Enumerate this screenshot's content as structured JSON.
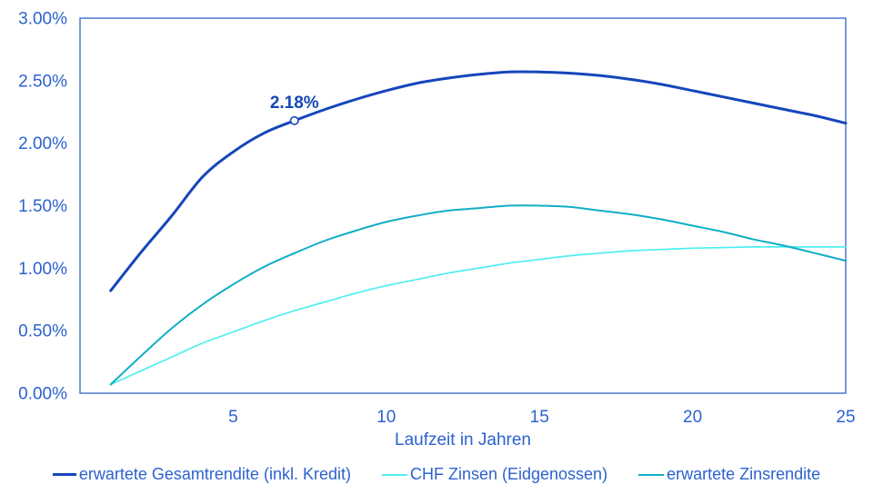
{
  "chart_data": {
    "type": "line",
    "title": "",
    "xlabel": "Laufzeit in Jahren",
    "ylabel": "",
    "xlim": [
      0,
      25
    ],
    "ylim": [
      0,
      3
    ],
    "grid": false,
    "legend_position": "bottom",
    "x_ticks": [
      5,
      10,
      15,
      20,
      25
    ],
    "x_tick_labels": [
      "5",
      "10",
      "15",
      "20",
      "25"
    ],
    "y_ticks": [
      0,
      0.5,
      1,
      1.5,
      2,
      2.5,
      3
    ],
    "y_tick_labels": [
      "0.00%",
      "0.50%",
      "1.00%",
      "1.50%",
      "2.00%",
      "2.50%",
      "3.00%"
    ],
    "x": [
      1,
      2,
      3,
      4,
      5,
      6,
      7,
      8,
      9,
      10,
      11,
      12,
      13,
      14,
      15,
      16,
      17,
      18,
      19,
      20,
      21,
      22,
      23,
      24,
      25
    ],
    "series": [
      {
        "name": "erwartete Gesamtrendite (inkl. Kredit)",
        "color": "#1546bb",
        "width": 3,
        "values": [
          0.82,
          1.13,
          1.42,
          1.73,
          1.93,
          2.08,
          2.18,
          2.27,
          2.35,
          2.42,
          2.48,
          2.52,
          2.55,
          2.57,
          2.57,
          2.56,
          2.54,
          2.51,
          2.47,
          2.42,
          2.37,
          2.32,
          2.27,
          2.22,
          2.16
        ]
      },
      {
        "name": "CHF Zinsen (Eidgenossen)",
        "color": "#4feef0",
        "width": 1.7,
        "values": [
          0.07,
          0.18,
          0.29,
          0.4,
          0.49,
          0.58,
          0.66,
          0.73,
          0.8,
          0.86,
          0.91,
          0.96,
          1.0,
          1.04,
          1.07,
          1.1,
          1.12,
          1.14,
          1.15,
          1.16,
          1.165,
          1.17,
          1.17,
          1.17,
          1.17
        ]
      },
      {
        "name": "erwartete Zinsrendite",
        "color": "#10aec6",
        "width": 2,
        "values": [
          0.07,
          0.3,
          0.52,
          0.71,
          0.87,
          1.01,
          1.12,
          1.22,
          1.3,
          1.37,
          1.42,
          1.46,
          1.48,
          1.5,
          1.5,
          1.49,
          1.46,
          1.43,
          1.39,
          1.34,
          1.29,
          1.23,
          1.18,
          1.12,
          1.06
        ]
      }
    ],
    "annotation": {
      "x": 7,
      "y": 2.18,
      "label": "2.18%"
    },
    "colors": {
      "axis_text": "#2c62cf",
      "plot_border": "#4d79d0",
      "annotation_text": "#1546bb",
      "background": "#ffffff"
    }
  }
}
